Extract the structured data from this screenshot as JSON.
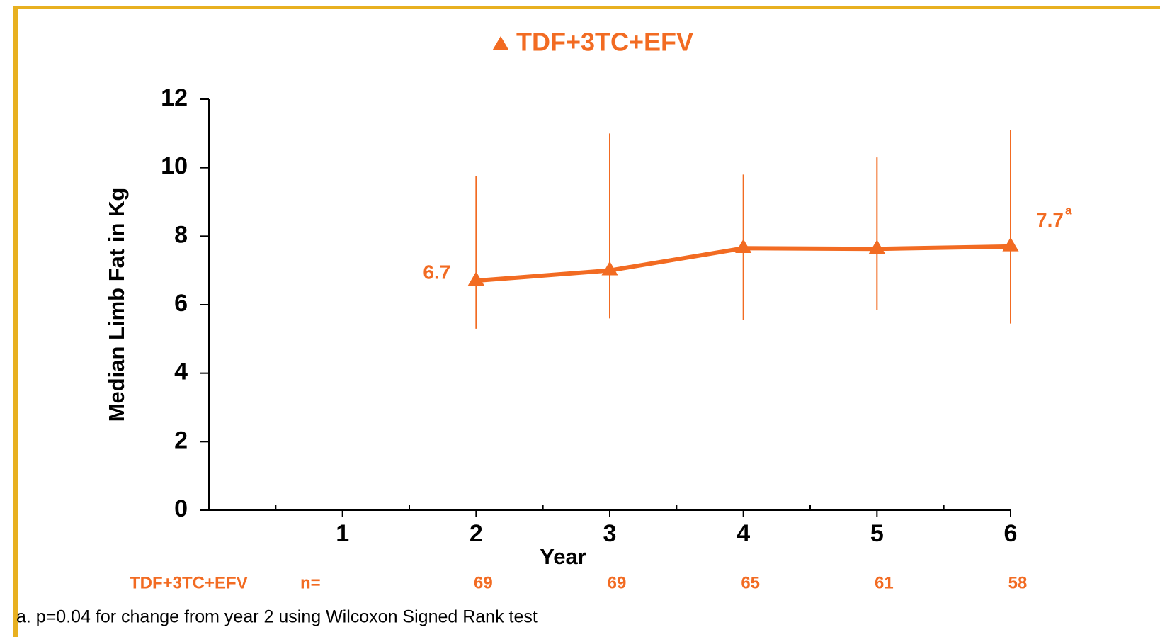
{
  "chart_data": {
    "type": "line",
    "y_label": "Median Limb Fat in Kg",
    "x_label": "Year",
    "x": [
      2,
      3,
      4,
      5,
      6
    ],
    "series": [
      {
        "name": "TDF+3TC+EFV",
        "color": "#f26b22",
        "values": [
          6.7,
          7.0,
          7.65,
          7.63,
          7.7
        ],
        "lower": [
          5.3,
          5.6,
          5.55,
          5.85,
          5.45
        ],
        "upper": [
          9.75,
          11.0,
          9.8,
          10.3,
          11.1
        ],
        "value_labels": [
          "6.7",
          null,
          null,
          null,
          "7.7"
        ],
        "value_label_notes": [
          null,
          null,
          null,
          null,
          "a"
        ],
        "n_label": "n=",
        "n": [
          69,
          69,
          65,
          61,
          58
        ]
      }
    ],
    "xlim": [
      0,
      6
    ],
    "xticks": [
      1,
      2,
      3,
      4,
      5,
      6
    ],
    "xminorticks": [
      0.5,
      1.5,
      2.5,
      3.5,
      4.5,
      5.5
    ],
    "ylim": [
      0,
      12
    ],
    "yticks": [
      0,
      2,
      4,
      6,
      8,
      10,
      12
    ],
    "legend": "top",
    "footnote": "a. p=0.04 for change from year 2 using Wilcoxon Signed Rank test"
  }
}
